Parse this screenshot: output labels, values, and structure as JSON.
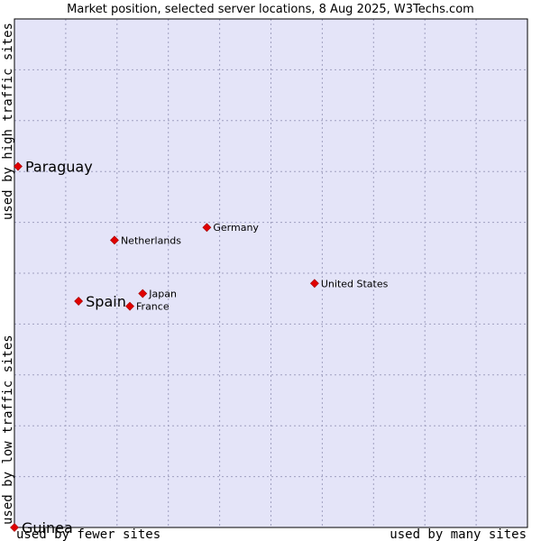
{
  "chart_data": {
    "type": "scatter",
    "title": "Market position, selected server locations, 8 Aug 2025, W3Techs.com",
    "xlabel_low": "used by fewer sites",
    "xlabel_high": "used by many sites",
    "ylabel_low": "used by low traffic sites",
    "ylabel_high": "used by high traffic sites",
    "xlim": [
      0,
      100
    ],
    "ylim": [
      0,
      100
    ],
    "grid": true,
    "colors": {
      "background": "#e4e4f8",
      "point": "#e00000",
      "border": "#000000"
    },
    "points": [
      {
        "label": "Paraguay",
        "x": 0.7,
        "y": 71.0,
        "size": "large"
      },
      {
        "label": "Germany",
        "x": 37.5,
        "y": 59.0,
        "size": "small"
      },
      {
        "label": "Netherlands",
        "x": 19.5,
        "y": 56.5,
        "size": "small"
      },
      {
        "label": "United States",
        "x": 58.5,
        "y": 48.0,
        "size": "small"
      },
      {
        "label": "Japan",
        "x": 25.0,
        "y": 46.0,
        "size": "small"
      },
      {
        "label": "Spain",
        "x": 12.5,
        "y": 44.5,
        "size": "large"
      },
      {
        "label": "France",
        "x": 22.5,
        "y": 43.5,
        "size": "small"
      },
      {
        "label": "Guinea",
        "x": 0.0,
        "y": 0.0,
        "size": "large"
      }
    ]
  }
}
